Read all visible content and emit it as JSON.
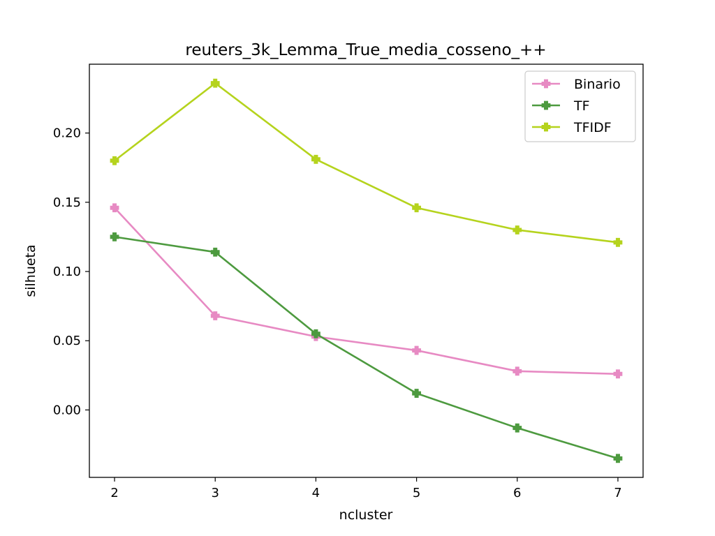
{
  "chart_data": {
    "type": "line",
    "title": "reuters_3k_Lemma_True_media_cosseno_++",
    "xlabel": "ncluster",
    "ylabel": "silhueta",
    "x": [
      2,
      3,
      4,
      5,
      6,
      7
    ],
    "xlim": [
      1.75,
      7.25
    ],
    "ylim": [
      -0.0487,
      0.2497
    ],
    "xticks": [
      "2",
      "3",
      "4",
      "5",
      "6",
      "7"
    ],
    "yticks": [
      "0.00",
      "0.05",
      "0.10",
      "0.15",
      "0.20"
    ],
    "grid": false,
    "legend_position": "top-right",
    "marker": "plus-filled",
    "series": [
      {
        "name": "Binario",
        "color": "#e78ac3",
        "values": [
          0.146,
          0.068,
          0.053,
          0.043,
          0.028,
          0.026
        ]
      },
      {
        "name": "TF",
        "color": "#4d9a3f",
        "values": [
          0.125,
          0.114,
          0.055,
          0.012,
          -0.013,
          -0.035
        ]
      },
      {
        "name": "TFIDF",
        "color": "#b5d31d",
        "values": [
          0.18,
          0.236,
          0.181,
          0.146,
          0.13,
          0.121
        ]
      }
    ]
  }
}
